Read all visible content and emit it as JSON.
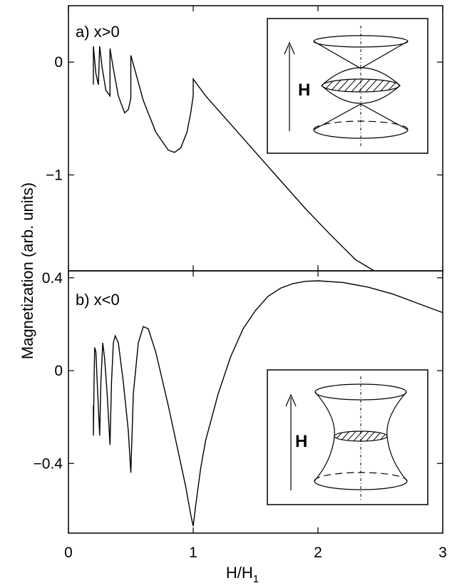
{
  "chart_data": [
    {
      "type": "line",
      "panel_label": "a) x>0",
      "xlabel": "H/H",
      "xlabel_sub": "1",
      "ylabel": "Magnetization (arb. units)",
      "xlim": [
        0,
        3
      ],
      "ylim": [
        -1.85,
        0.5
      ],
      "xticks": [
        "0",
        "1",
        "2",
        "3"
      ],
      "yticks": [
        {
          "value": 0,
          "label": "0"
        },
        {
          "value": -1,
          "label": "−1"
        }
      ],
      "series": [
        {
          "points": [
            [
              0.2,
              -0.2
            ],
            [
              0.2,
              0.14
            ],
            [
              0.22,
              -0.1
            ],
            [
              0.24,
              -0.2
            ],
            [
              0.25,
              0.14
            ],
            [
              0.27,
              -0.05
            ],
            [
              0.3,
              -0.25
            ],
            [
              0.333,
              -0.3
            ],
            [
              0.333,
              0.12
            ],
            [
              0.36,
              -0.06
            ],
            [
              0.4,
              -0.3
            ],
            [
              0.45,
              -0.45
            ],
            [
              0.48,
              -0.42
            ],
            [
              0.5,
              -0.32
            ],
            [
              0.5,
              0.06
            ],
            [
              0.55,
              -0.14
            ],
            [
              0.6,
              -0.34
            ],
            [
              0.7,
              -0.62
            ],
            [
              0.8,
              -0.78
            ],
            [
              0.85,
              -0.8
            ],
            [
              0.9,
              -0.76
            ],
            [
              0.95,
              -0.62
            ],
            [
              0.98,
              -0.45
            ],
            [
              1.0,
              -0.3
            ],
            [
              1.0,
              -0.15
            ],
            [
              1.1,
              -0.3
            ],
            [
              1.3,
              -0.55
            ],
            [
              1.5,
              -0.8
            ],
            [
              1.7,
              -1.05
            ],
            [
              1.9,
              -1.3
            ],
            [
              2.1,
              -1.53
            ],
            [
              2.3,
              -1.75
            ],
            [
              2.45,
              -1.88
            ]
          ]
        }
      ],
      "inset": {
        "label": "H",
        "shape": "double-cone"
      }
    },
    {
      "type": "line",
      "panel_label": "b) x<0",
      "xlim": [
        0,
        3
      ],
      "ylim": [
        -0.7,
        0.43
      ],
      "yticks": [
        {
          "value": 0.4,
          "label": "0.4"
        },
        {
          "value": 0,
          "label": "0"
        },
        {
          "value": -0.4,
          "label": "−0.4"
        }
      ],
      "series": [
        {
          "points": [
            [
              0.2,
              -0.15
            ],
            [
              0.2,
              -0.28
            ],
            [
              0.205,
              -0.05
            ],
            [
              0.21,
              0.1
            ],
            [
              0.22,
              0.08
            ],
            [
              0.235,
              -0.1
            ],
            [
              0.25,
              -0.28
            ],
            [
              0.26,
              -0.05
            ],
            [
              0.275,
              0.12
            ],
            [
              0.29,
              0.05
            ],
            [
              0.31,
              -0.1
            ],
            [
              0.333,
              -0.32
            ],
            [
              0.345,
              -0.05
            ],
            [
              0.36,
              0.12
            ],
            [
              0.375,
              0.15
            ],
            [
              0.4,
              0.12
            ],
            [
              0.44,
              -0.05
            ],
            [
              0.48,
              -0.26
            ],
            [
              0.5,
              -0.44
            ],
            [
              0.52,
              -0.1
            ],
            [
              0.56,
              0.12
            ],
            [
              0.6,
              0.19
            ],
            [
              0.64,
              0.18
            ],
            [
              0.7,
              0.08
            ],
            [
              0.8,
              -0.15
            ],
            [
              0.88,
              -0.35
            ],
            [
              0.94,
              -0.5
            ],
            [
              0.98,
              -0.62
            ],
            [
              1.0,
              -0.67
            ],
            [
              1.02,
              -0.58
            ],
            [
              1.06,
              -0.42
            ],
            [
              1.1,
              -0.3
            ],
            [
              1.2,
              -0.1
            ],
            [
              1.3,
              0.06
            ],
            [
              1.4,
              0.18
            ],
            [
              1.5,
              0.26
            ],
            [
              1.6,
              0.32
            ],
            [
              1.7,
              0.355
            ],
            [
              1.8,
              0.375
            ],
            [
              1.9,
              0.385
            ],
            [
              2.0,
              0.387
            ],
            [
              2.2,
              0.38
            ],
            [
              2.4,
              0.36
            ],
            [
              2.6,
              0.33
            ],
            [
              2.8,
              0.29
            ],
            [
              3.0,
              0.25
            ]
          ]
        }
      ],
      "inset": {
        "label": "H",
        "shape": "hyperboloid"
      }
    }
  ]
}
